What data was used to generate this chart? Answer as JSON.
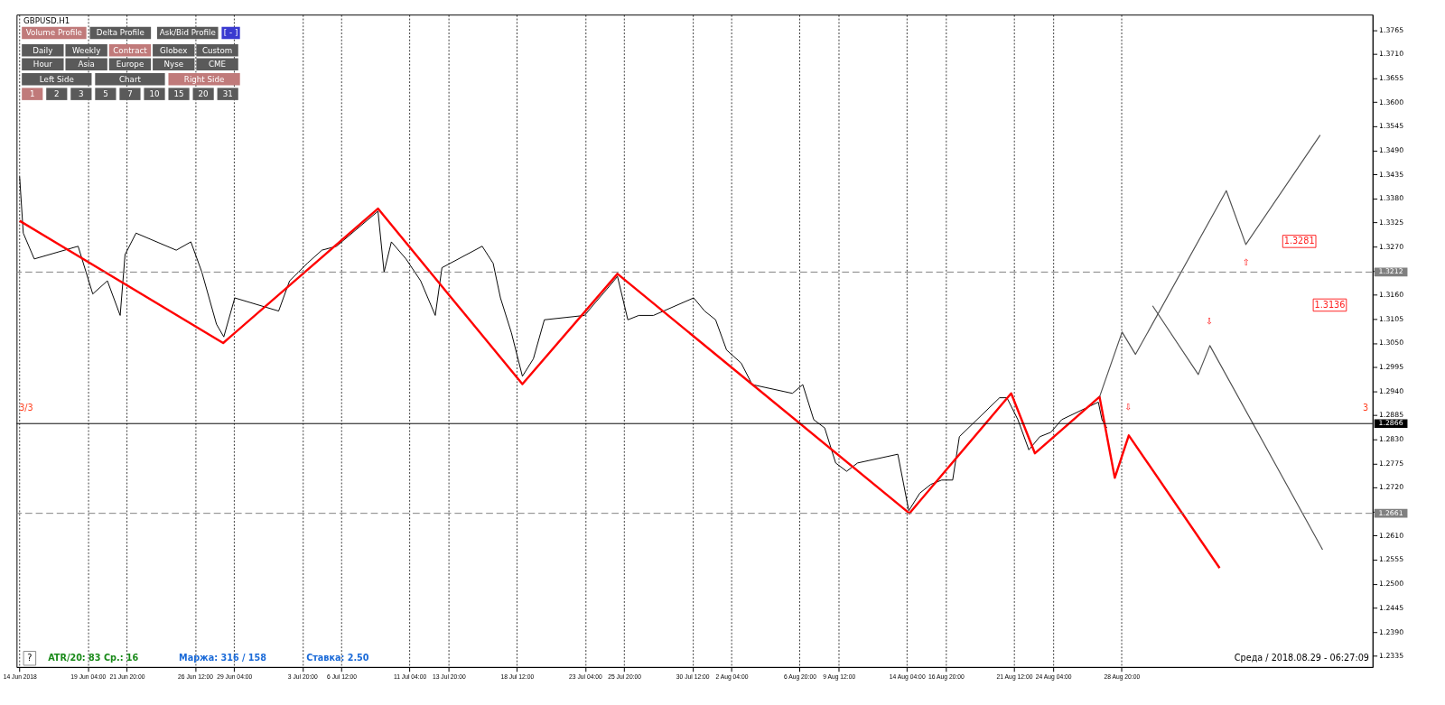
{
  "chart_data": {
    "type": "line",
    "title": "GBPUSD.H1",
    "xlim": [
      "2018-06-14T07:00",
      "2018-09-15T00:00"
    ],
    "ylim": [
      1.231,
      1.38
    ],
    "xticks": [
      {
        "value": "2018-06-14T12:00",
        "label": "14 Jun 2018"
      },
      {
        "value": "2018-06-19T04:00",
        "label": "19 Jun 04:00"
      },
      {
        "value": "2018-06-21T20:00",
        "label": "21 Jun 20:00"
      },
      {
        "value": "2018-06-26T12:00",
        "label": "26 Jun 12:00"
      },
      {
        "value": "2018-06-29T04:00",
        "label": "29 Jun 04:00"
      },
      {
        "value": "2018-07-03T20:00",
        "label": "3 Jul 20:00"
      },
      {
        "value": "2018-07-06T12:00",
        "label": "6 Jul 12:00"
      },
      {
        "value": "2018-07-11T04:00",
        "label": "11 Jul 04:00"
      },
      {
        "value": "2018-07-13T20:00",
        "label": "13 Jul 20:00"
      },
      {
        "value": "2018-07-18T12:00",
        "label": "18 Jul 12:00"
      },
      {
        "value": "2018-07-23T04:00",
        "label": "23 Jul 04:00"
      },
      {
        "value": "2018-07-25T20:00",
        "label": "25 Jul 20:00"
      },
      {
        "value": "2018-07-30T12:00",
        "label": "30 Jul 12:00"
      },
      {
        "value": "2018-08-02T04:00",
        "label": "2 Aug 04:00"
      },
      {
        "value": "2018-08-06T20:00",
        "label": "6 Aug 20:00"
      },
      {
        "value": "2018-08-09T12:00",
        "label": "9 Aug 12:00"
      },
      {
        "value": "2018-08-14T04:00",
        "label": "14 Aug 04:00"
      },
      {
        "value": "2018-08-16T20:00",
        "label": "16 Aug 20:00"
      },
      {
        "value": "2018-08-21T12:00",
        "label": "21 Aug 12:00"
      },
      {
        "value": "2018-08-24T04:00",
        "label": "24 Aug 04:00"
      },
      {
        "value": "2018-08-28T20:00",
        "label": "28 Aug 20:00"
      }
    ],
    "yticks": [
      {
        "value": 1.2335,
        "label": "1.2335"
      },
      {
        "value": 1.239,
        "label": "1.2390"
      },
      {
        "value": 1.2445,
        "label": "1.2445"
      },
      {
        "value": 1.25,
        "label": "1.2500"
      },
      {
        "value": 1.2555,
        "label": "1.2555"
      },
      {
        "value": 1.261,
        "label": "1.2610"
      },
      {
        "value": 1.2665,
        "label": null
      },
      {
        "value": 1.272,
        "label": "1.2720"
      },
      {
        "value": 1.2775,
        "label": "1.2775"
      },
      {
        "value": 1.283,
        "label": "1.2830"
      },
      {
        "value": 1.2885,
        "label": "1.2885"
      },
      {
        "value": 1.294,
        "label": "1.2940"
      },
      {
        "value": 1.2995,
        "label": "1.2995"
      },
      {
        "value": 1.305,
        "label": "1.3050"
      },
      {
        "value": 1.3105,
        "label": "1.3105"
      },
      {
        "value": 1.316,
        "label": "1.3160"
      },
      {
        "value": 1.3215,
        "label": null
      },
      {
        "value": 1.327,
        "label": "1.3270"
      },
      {
        "value": 1.3325,
        "label": "1.3325"
      },
      {
        "value": 1.338,
        "label": "1.3380"
      },
      {
        "value": 1.3435,
        "label": "1.3435"
      },
      {
        "value": 1.349,
        "label": "1.3490"
      },
      {
        "value": 1.3545,
        "label": "1.3545"
      },
      {
        "value": 1.36,
        "label": "1.3600"
      },
      {
        "value": 1.3655,
        "label": "1.3655"
      },
      {
        "value": 1.371,
        "label": "1.3710"
      },
      {
        "value": 1.3765,
        "label": "1.3765"
      }
    ],
    "grid": "x",
    "marker": "none",
    "line_style": "solid",
    "series": [
      {
        "color": "#000000",
        "x": [
          "2018-06-14T12:00",
          "2018-06-14T18:00",
          "2018-06-15T12:00",
          "2018-06-18T12:00",
          "2018-06-19T12:00",
          "2018-06-20T12:00",
          "2018-06-21T09:00",
          "2018-06-21T17:00",
          "2018-06-22T11:00",
          "2018-06-25T05:00",
          "2018-06-26T05:00",
          "2018-06-26T23:00",
          "2018-06-27T23:00",
          "2018-06-28T11:00",
          "2018-06-29T05:00",
          "2018-07-02T05:00",
          "2018-07-02T23:00",
          "2018-07-04T04:00",
          "2018-07-05T04:00",
          "2018-07-06T04:00",
          "2018-07-09T00:00",
          "2018-07-09T10:00",
          "2018-07-09T22:00",
          "2018-07-10T22:00",
          "2018-07-11T22:00",
          "2018-07-12T22:00",
          "2018-07-13T09:00",
          "2018-07-16T03:00",
          "2018-07-16T21:00",
          "2018-07-17T09:00",
          "2018-07-18T03:00",
          "2018-07-18T21:00",
          "2018-07-19T15:00",
          "2018-07-20T09:00",
          "2018-07-23T03:00",
          "2018-07-23T21:00",
          "2018-07-24T15:00",
          "2018-07-25T09:00",
          "2018-07-26T02:00",
          "2018-07-26T20:00",
          "2018-07-27T20:00",
          "2018-07-30T14:00",
          "2018-07-31T08:00",
          "2018-08-01T02:00",
          "2018-08-01T20:00",
          "2018-08-02T20:00",
          "2018-08-03T14:00",
          "2018-08-06T08:00",
          "2018-08-07T01:00",
          "2018-08-07T19:00",
          "2018-08-08T13:00",
          "2018-08-09T07:00",
          "2018-08-10T01:00",
          "2018-08-10T19:00",
          "2018-08-13T13:00",
          "2018-08-14T07:00",
          "2018-08-15T01:00",
          "2018-08-15T19:00",
          "2018-08-16T13:00",
          "2018-08-17T07:00",
          "2018-08-17T18:00",
          "2018-08-20T12:00",
          "2018-08-21T00:00",
          "2018-08-21T18:00",
          "2018-08-22T12:00",
          "2018-08-23T06:00",
          "2018-08-24T00:00",
          "2018-08-24T18:00",
          "2018-08-27T06:00",
          "2018-08-27T12:00",
          "2018-08-27T20:00"
        ],
        "values": [
          1.343,
          1.3301,
          1.3242,
          1.3271,
          1.3162,
          1.3192,
          1.3113,
          1.3252,
          1.3301,
          1.3262,
          1.3281,
          1.3212,
          1.3093,
          1.3064,
          1.3153,
          1.3123,
          1.3192,
          1.3232,
          1.3262,
          1.3271,
          1.3351,
          1.3212,
          1.3281,
          1.3242,
          1.3192,
          1.3113,
          1.3222,
          1.3271,
          1.3232,
          1.3153,
          1.3073,
          1.2974,
          1.3014,
          1.3103,
          1.3113,
          1.3143,
          1.3172,
          1.3202,
          1.3103,
          1.3113,
          1.3113,
          1.3153,
          1.3123,
          1.3103,
          1.3034,
          1.3004,
          1.2955,
          1.2935,
          1.2955,
          1.2875,
          1.2856,
          1.2776,
          1.2757,
          1.2776,
          1.2796,
          1.2667,
          1.2707,
          1.2727,
          1.2737,
          1.2737,
          1.2836,
          1.2925,
          1.2925,
          1.2875,
          1.2806,
          1.2836,
          1.2846,
          1.2875,
          1.2915,
          1.2875,
          1.2856
        ]
      },
      {
        "color": "#ff0000",
        "x": [
          "2018-06-14T12:00",
          "2018-06-28T10:00",
          "2018-07-09T00:00",
          "2018-07-18T21:00",
          "2018-07-25T09:00",
          "2018-08-14T08:00",
          "2018-08-21T07:00",
          "2018-08-22T22:00",
          "2018-08-27T08:00",
          "2018-08-28T09:00",
          "2018-08-29T08:00",
          "2018-09-04T13:00"
        ],
        "values": [
          1.3329,
          1.305,
          1.3357,
          1.2956,
          1.3208,
          1.2661,
          1.2935,
          1.2798,
          1.2927,
          1.2742,
          1.2839,
          1.2536
        ]
      },
      {
        "color": "#505050",
        "x": [
          "2018-08-27T08:00",
          "2018-08-28T21:00",
          "2018-08-29T19:00",
          "2018-09-05T00:00",
          "2018-09-06T08:00",
          "2018-09-11T10:00"
        ],
        "values": [
          1.2927,
          1.3075,
          1.3024,
          1.3398,
          1.3275,
          1.3525
        ]
      },
      {
        "color": "#505050",
        "x": [
          "2018-08-30T23:00",
          "2018-09-03T02:00",
          "2018-09-03T21:00",
          "2018-09-11T14:00"
        ],
        "values": [
          1.3135,
          1.2978,
          1.3044,
          1.2578
        ]
      }
    ],
    "ref_lines": [
      {
        "axis": "y",
        "value": 1.3212,
        "label": "1.3212",
        "color": "#808080",
        "line_style": "dashed"
      },
      {
        "axis": "y",
        "value": 1.2661,
        "label": "1.2661",
        "color": "#808080",
        "line_style": "dashed"
      },
      {
        "axis": "y",
        "value": 1.2866,
        "label": "1.2866",
        "color": "#000000",
        "line_style": "solid"
      }
    ],
    "annotations": [
      "Volume Profile",
      "Delta Profile",
      "Ask/Bid Profile",
      "[ - ]",
      "Daily",
      "Weekly",
      "Contract",
      "Globex",
      "Custom",
      "Hour",
      "Asia",
      "Europe",
      "Nyse",
      "CME",
      "Left Side",
      "Chart",
      "Right Side",
      "1",
      "2",
      "3",
      "5",
      "7",
      "10",
      "15",
      "20",
      "31",
      "?",
      "ATR/20: 83",
      "Ср.: 16",
      "Маржа: 316 / 158",
      "Ставка: 2.50",
      "Среда / 2018.08.29 - 06:27:09",
      "⇩",
      "⇩",
      "⇧",
      "3/3",
      "3",
      "1.3281",
      "1.3136"
    ]
  }
}
